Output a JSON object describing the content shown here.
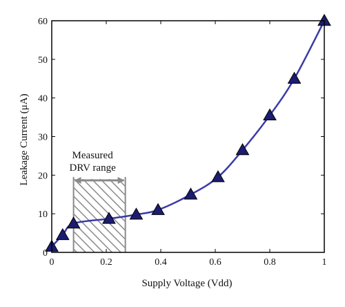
{
  "chart_data": {
    "type": "line",
    "title": "",
    "xlabel": "Supply Voltage (Vdd)",
    "ylabel": "Leakage Current (μA)",
    "xlim": [
      0,
      1
    ],
    "ylim": [
      0,
      60
    ],
    "xticks": [
      0,
      0.2,
      0.4,
      0.6,
      0.8,
      1
    ],
    "xtick_labels": [
      "0",
      "0.2",
      "0.4",
      "0.6",
      "0.8",
      "1"
    ],
    "yticks": [
      0,
      10,
      20,
      30,
      40,
      50,
      60
    ],
    "ytick_labels": [
      "0",
      "10",
      "20",
      "30",
      "40",
      "50",
      "60"
    ],
    "grid": false,
    "series": [
      {
        "marker": "triangle",
        "color": "#3a3aa8",
        "marker_fill": "#1c1c70",
        "x": [
          0,
          0.04,
          0.08,
          0.21,
          0.31,
          0.39,
          0.51,
          0.61,
          0.7,
          0.8,
          0.89,
          1.0
        ],
        "y": [
          1.5,
          4.5,
          7.5,
          8.7,
          9.8,
          11.0,
          15.0,
          19.5,
          26.5,
          35.5,
          45.0,
          60.0
        ]
      }
    ],
    "annotations": [
      {
        "text_lines": [
          "Measured",
          "DRV range"
        ],
        "region_x": [
          0.08,
          0.27
        ],
        "region_ylim": [
          0,
          19
        ],
        "hatched": true,
        "arrow": "double-headed"
      }
    ],
    "colors": {
      "line": "#3a3aa8",
      "marker": "#1c1c70",
      "hatch": "#8a8a8a",
      "axes": "#000000"
    }
  }
}
